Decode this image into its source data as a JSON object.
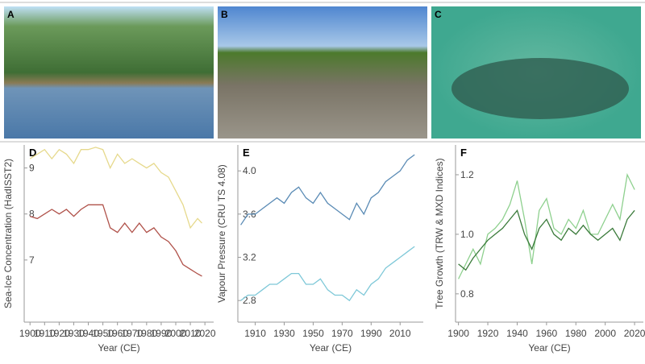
{
  "photos": {
    "labels": [
      "A",
      "B",
      "C"
    ]
  },
  "chart_data": [
    {
      "type": "line",
      "label": "D",
      "xlabel": "Year (CE)",
      "ylabel": "Sea-Ice Concentration (HadISST2)",
      "x": [
        1900,
        1905,
        1910,
        1915,
        1920,
        1925,
        1930,
        1935,
        1940,
        1945,
        1950,
        1955,
        1960,
        1965,
        1970,
        1975,
        1980,
        1985,
        1990,
        1995,
        2000,
        2005,
        2010,
        2015,
        2018
      ],
      "xlim": [
        1896,
        2026
      ],
      "xticks": [
        1900,
        1910,
        1920,
        1930,
        1940,
        1950,
        1960,
        1970,
        1980,
        1990,
        2000,
        2010,
        2020
      ],
      "ylim": [
        5.65,
        9.5
      ],
      "yticks": [
        7,
        8,
        9
      ],
      "series": [
        {
          "color": "#e6d98c",
          "values": [
            9.2,
            9.3,
            9.4,
            9.2,
            9.4,
            9.3,
            9.1,
            9.4,
            9.4,
            9.45,
            9.4,
            9.0,
            9.3,
            9.1,
            9.2,
            9.1,
            9.0,
            9.1,
            8.9,
            8.8,
            8.5,
            8.2,
            7.7,
            7.9,
            7.8
          ]
        },
        {
          "color": "#b0524a",
          "values": [
            7.95,
            7.9,
            8.0,
            8.1,
            8.0,
            8.1,
            7.95,
            8.1,
            8.2,
            8.2,
            8.2,
            7.7,
            7.6,
            7.8,
            7.6,
            7.8,
            7.6,
            7.7,
            7.5,
            7.4,
            7.2,
            6.9,
            6.8,
            6.7,
            6.65
          ]
        }
      ]
    },
    {
      "type": "line",
      "label": "E",
      "xlabel": "Year (CE)",
      "ylabel": "Vapour Pressure (CRU TS 4.08)",
      "x": [
        1900,
        1905,
        1910,
        1915,
        1920,
        1925,
        1930,
        1935,
        1940,
        1945,
        1950,
        1955,
        1960,
        1965,
        1970,
        1975,
        1980,
        1985,
        1990,
        1995,
        2000,
        2005,
        2010,
        2015,
        2020
      ],
      "xlim": [
        1898,
        2026
      ],
      "xticks": [
        1910,
        1930,
        1950,
        1970,
        1990,
        2010
      ],
      "ylim": [
        2.6,
        4.24
      ],
      "yticks": [
        2.8,
        3.2,
        3.6,
        {
          "value": 4,
          "label": "4.0"
        }
      ],
      "series": [
        {
          "color": "#5a8bb5",
          "values": [
            3.5,
            3.6,
            3.6,
            3.65,
            3.7,
            3.75,
            3.7,
            3.8,
            3.85,
            3.75,
            3.7,
            3.8,
            3.7,
            3.65,
            3.6,
            3.55,
            3.7,
            3.6,
            3.75,
            3.8,
            3.9,
            3.95,
            4.0,
            4.1,
            4.15
          ]
        },
        {
          "color": "#7ec8d8",
          "values": [
            2.8,
            2.85,
            2.85,
            2.9,
            2.95,
            2.95,
            3.0,
            3.05,
            3.05,
            2.95,
            2.95,
            3.0,
            2.9,
            2.85,
            2.85,
            2.8,
            2.9,
            2.85,
            2.95,
            3.0,
            3.1,
            3.15,
            3.2,
            3.25,
            3.3
          ]
        }
      ]
    },
    {
      "type": "line",
      "label": "F",
      "xlabel": "Year (CE)",
      "ylabel": "Tree Growth (TRW & MXD Indices)",
      "x": [
        1900,
        1905,
        1910,
        1915,
        1920,
        1925,
        1930,
        1935,
        1940,
        1945,
        1950,
        1955,
        1960,
        1965,
        1970,
        1975,
        1980,
        1985,
        1990,
        1995,
        2000,
        2005,
        2010,
        2015,
        2020
      ],
      "xlim": [
        1898,
        2026
      ],
      "xticks": [
        1900,
        1920,
        1940,
        1960,
        1980,
        2000,
        2020
      ],
      "ylim": [
        0.705,
        1.3
      ],
      "yticks": [
        0.8,
        {
          "value": 1,
          "label": "1.0"
        },
        1.2
      ],
      "series": [
        {
          "color": "#8ed08e",
          "values": [
            0.85,
            0.9,
            0.95,
            0.9,
            1.0,
            1.02,
            1.05,
            1.1,
            1.18,
            1.05,
            0.9,
            1.08,
            1.12,
            1.02,
            1.0,
            1.05,
            1.02,
            1.08,
            1.0,
            1.0,
            1.05,
            1.1,
            1.05,
            1.2,
            1.15
          ]
        },
        {
          "color": "#3a7a3a",
          "values": [
            0.9,
            0.88,
            0.92,
            0.95,
            0.98,
            1.0,
            1.02,
            1.05,
            1.08,
            1.0,
            0.95,
            1.02,
            1.05,
            1.0,
            0.98,
            1.02,
            1.0,
            1.03,
            1.0,
            0.98,
            1.0,
            1.02,
            0.98,
            1.05,
            1.08
          ]
        }
      ]
    }
  ]
}
